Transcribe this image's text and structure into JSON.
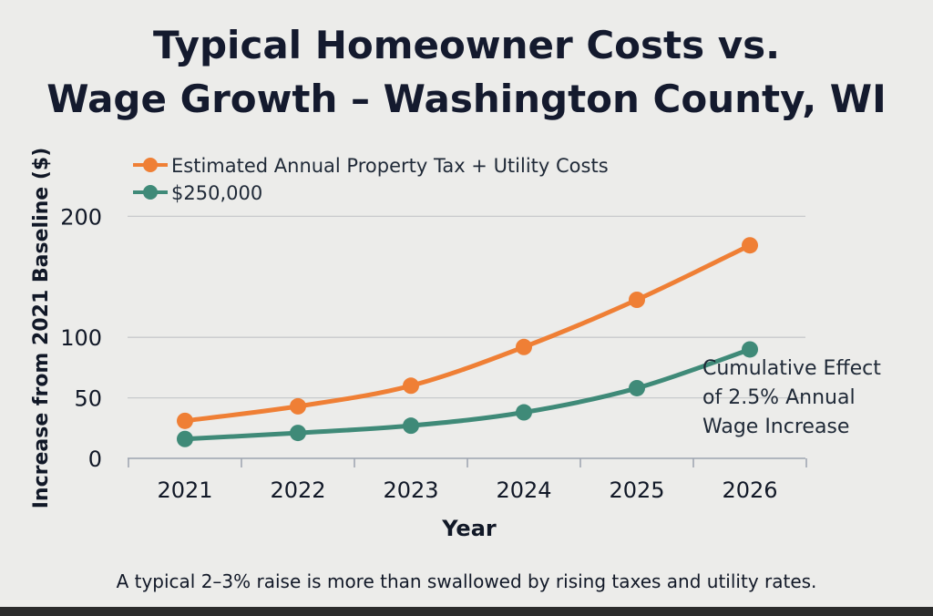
{
  "chart_data": {
    "type": "line",
    "title_lines": [
      "Typical Homeowner Costs vs.",
      "Wage Growth – Washington County, WI"
    ],
    "xlabel": "Year",
    "ylabel": "Increase from 2021 Baseline ($)",
    "categories": [
      "2021",
      "2022",
      "2023",
      "2024",
      "2025",
      "2026"
    ],
    "y_ticks": [
      {
        "label": "0",
        "value": 0
      },
      {
        "label": "50",
        "value": 50
      },
      {
        "label": "100",
        "value": 100
      },
      {
        "label": "200",
        "value": 200
      }
    ],
    "ylim": [
      0,
      262
    ],
    "grid": true,
    "legend_position": "top-left",
    "series": [
      {
        "name": "Estimated Annual Property Tax + Utility Costs",
        "color": "#ef7f35",
        "values": [
          31,
          43,
          60,
          92,
          131,
          176
        ]
      },
      {
        "name": "$250,000",
        "color": "#3f8a78",
        "values": [
          16,
          21,
          27,
          38,
          58,
          90
        ]
      }
    ],
    "annotation_lines": [
      "Cumulative Effect",
      "of 2.5% Annual",
      "Wage Increase"
    ],
    "caption": "A typical 2–3% raise is more than swallowed by rising taxes and utility rates."
  }
}
